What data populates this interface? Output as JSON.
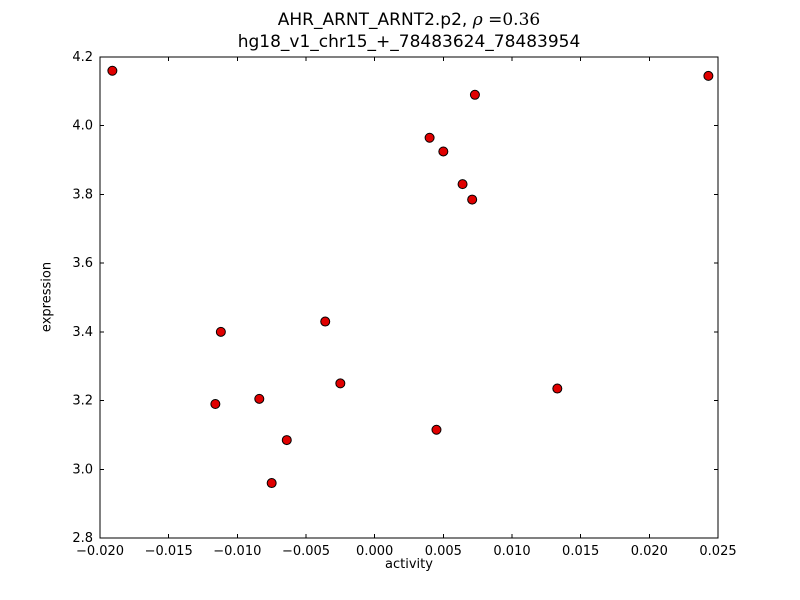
{
  "chart_data": {
    "type": "scatter",
    "title": {
      "line1_prefix": "AHR_ARNT_ARNT2.p2, ",
      "line1_symbol": "ρ",
      "line1_suffix": " =0.36",
      "line2": "hg18_v1_chr15_+_78483624_78483954"
    },
    "xlabel": "activity",
    "ylabel": "expression",
    "xlim": [
      -0.02,
      0.025
    ],
    "ylim": [
      2.8,
      4.2
    ],
    "xticks": [
      -0.02,
      -0.015,
      -0.01,
      -0.005,
      0.0,
      0.005,
      0.01,
      0.015,
      0.02,
      0.025
    ],
    "xtick_labels": [
      "−0.020",
      "−0.015",
      "−0.010",
      "−0.005",
      "0.000",
      "0.005",
      "0.010",
      "0.015",
      "0.020",
      "0.025"
    ],
    "yticks": [
      2.8,
      3.0,
      3.2,
      3.4,
      3.6,
      3.8,
      4.0,
      4.2
    ],
    "ytick_labels": [
      "2.8",
      "3.0",
      "3.2",
      "3.4",
      "3.6",
      "3.8",
      "4.0",
      "4.2"
    ],
    "grid": false,
    "legend": null,
    "colors": {
      "marker_fill": "#e00000",
      "marker_edge": "#000000",
      "axis": "#000000",
      "background": "#ffffff"
    },
    "marker": {
      "shape": "circle",
      "radius": 4.5
    },
    "points": [
      {
        "x": -0.0191,
        "y": 4.16
      },
      {
        "x": 0.0243,
        "y": 4.145
      },
      {
        "x": 0.0073,
        "y": 4.09
      },
      {
        "x": 0.004,
        "y": 3.965
      },
      {
        "x": 0.005,
        "y": 3.925
      },
      {
        "x": 0.0064,
        "y": 3.83
      },
      {
        "x": 0.0071,
        "y": 3.785
      },
      {
        "x": -0.0036,
        "y": 3.43
      },
      {
        "x": -0.0112,
        "y": 3.4
      },
      {
        "x": -0.0025,
        "y": 3.25
      },
      {
        "x": 0.0133,
        "y": 3.235
      },
      {
        "x": -0.0084,
        "y": 3.205
      },
      {
        "x": -0.0116,
        "y": 3.19
      },
      {
        "x": 0.0045,
        "y": 3.115
      },
      {
        "x": -0.0064,
        "y": 3.085
      },
      {
        "x": -0.0075,
        "y": 2.96
      }
    ]
  }
}
